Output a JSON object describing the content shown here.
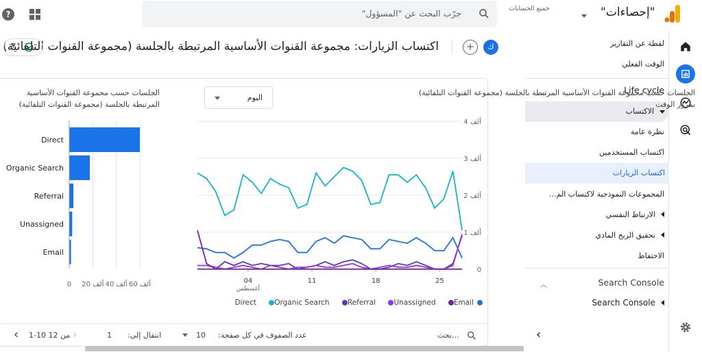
{
  "topbar": {
    "help_icon": "?",
    "search_placeholder": "جرّب البحث عن \"المسؤول\"",
    "account_label": "جميع الحسابات",
    "property_name": "\"إحصاءات\""
  },
  "nav": {
    "items": [
      {
        "label": "لقطة عن التقارير"
      },
      {
        "label": "الوقت الفعلي"
      }
    ],
    "lifecycle": {
      "label": "Life cycle",
      "acquisition": "الاكتساب",
      "acq_items": [
        "نظرة عامة",
        "اكتساب المستخدمين",
        "اكتساب الزيارات",
        "المجموعات النموذجية لاكتساب الم..."
      ],
      "engagement": "الارتباط النفسي",
      "monetization": "تحقيق الربح المادي",
      "retention": "الاحتفاظ"
    },
    "search_console": {
      "label": "Search Console",
      "sub": "Search Console"
    }
  },
  "title": {
    "text": "اكتساب الزيارات: مجموعة القنوات الأساسية المرتبطة بالجلسة (مجموعة القنوات التلقائية)",
    "avatar": "ك",
    "add": "+"
  },
  "line_card": {
    "title": "الجلسات حسب مجموعة القنوات الأساسية المرتبطة بالجلسة (مجموعة القنوات التلقائية) بمرور الوقت",
    "period": "اليوم"
  },
  "bar_card": {
    "title": "الجلسات حسب مجموعة القنوات الأساسية المرتبطة بالجلسة (مجموعة القنوات التلقائية)"
  },
  "legend": [
    {
      "name": "Direct",
      "color": "#1a73e8"
    },
    {
      "name": "Organic Search",
      "color": "#12b5cb"
    },
    {
      "name": "Referral",
      "color": "#5e35b1"
    },
    {
      "name": "Unassigned",
      "color": "#9334e6"
    },
    {
      "name": "Email",
      "color": "#7b1fa2"
    }
  ],
  "pager": {
    "search": "بحث...",
    "rows_label": "عدد الصفوف في كل صفحة:",
    "rows_value": "10",
    "goto_label": "انتقال إلى:",
    "goto_value": "1",
    "range": "1-10 من 12"
  },
  "chart_data": [
    {
      "type": "line",
      "x_ticks": [
        "04",
        "11",
        "18",
        "25"
      ],
      "x_sublabel": "أغسطس",
      "y_ticks": [
        "0",
        "1 ألف",
        "2 ألف",
        "3 ألف",
        "4 ألف"
      ],
      "ylim": [
        0,
        4000
      ],
      "series": [
        {
          "name": "Direct",
          "color": "#12b5cb",
          "values": [
            2600,
            2450,
            2100,
            1450,
            1600,
            2550,
            2350,
            2050,
            2450,
            2300,
            2200,
            1650,
            1750,
            2600,
            2250,
            2500,
            2750,
            2650,
            2400,
            1750,
            1800,
            2550,
            2550,
            2350,
            2550,
            2200,
            1650,
            1900,
            2650,
            1050
          ]
        },
        {
          "name": "Organic Search",
          "color": "#1a73e8",
          "values": [
            580,
            550,
            450,
            450,
            300,
            450,
            650,
            650,
            750,
            800,
            750,
            450,
            450,
            750,
            850,
            700,
            900,
            850,
            800,
            550,
            550,
            800,
            750,
            700,
            850,
            700,
            500,
            500,
            850,
            300
          ]
        },
        {
          "name": "Referral",
          "color": "#5e35b1",
          "values": [
            0,
            0,
            0,
            200,
            100,
            200,
            100,
            150,
            100,
            100,
            150,
            0,
            50,
            100,
            200,
            100,
            200,
            250,
            150,
            0,
            0,
            50,
            150,
            100,
            200,
            100,
            0,
            0,
            150,
            900
          ]
        },
        {
          "name": "Unassigned",
          "color": "#9334e6",
          "values": [
            100,
            100,
            50,
            0,
            50,
            100,
            50,
            0,
            100,
            50,
            0,
            50,
            50,
            100,
            50,
            50,
            100,
            150,
            50,
            0,
            50,
            100,
            50,
            50,
            100,
            50,
            0,
            0,
            100,
            950
          ]
        },
        {
          "name": "Email",
          "color": "#7b1fa2",
          "values": [
            1050,
            150,
            0,
            0,
            0,
            0,
            0,
            0,
            0,
            0,
            0,
            0,
            0,
            0,
            0,
            0,
            0,
            0,
            0,
            0,
            0,
            0,
            0,
            0,
            0,
            0,
            0,
            0,
            0,
            0
          ]
        }
      ]
    },
    {
      "type": "bar",
      "orientation": "horizontal",
      "categories": [
        "Direct",
        "Organic Search",
        "Referral",
        "Unassigned",
        "Email"
      ],
      "values": [
        60000,
        17500,
        3500,
        2500,
        1500
      ],
      "x_ticks": [
        "0",
        "20 ألف",
        "40 ألف",
        "60 ألف"
      ],
      "xlim": [
        0,
        60000
      ],
      "color": "#1a73e8"
    }
  ]
}
